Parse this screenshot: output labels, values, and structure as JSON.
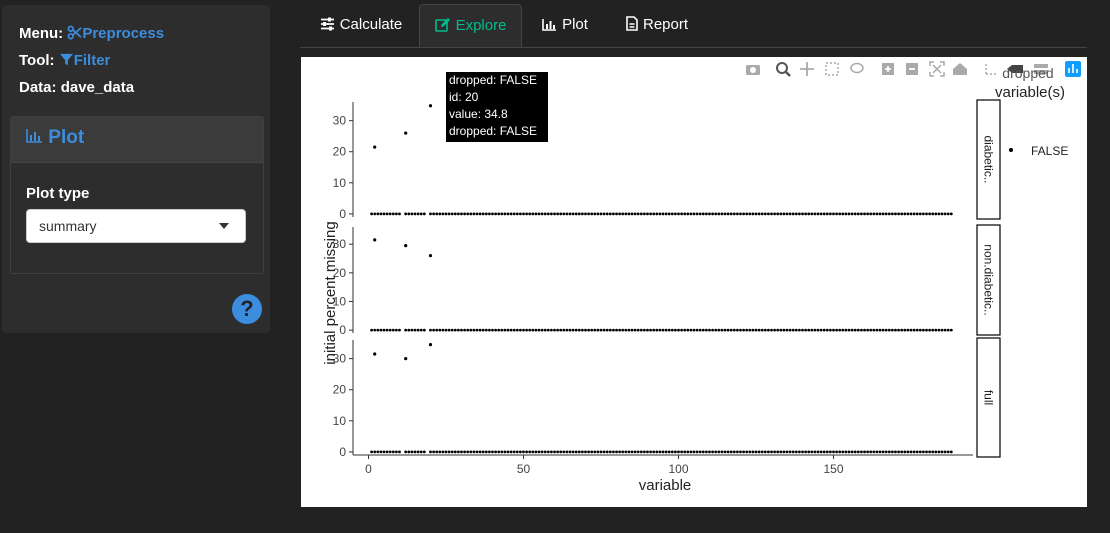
{
  "sidebar": {
    "menu_label": "Menu:",
    "menu_value": "Preprocess",
    "tool_label": "Tool:",
    "tool_value": "Filter",
    "data_label": "Data:",
    "data_value": "dave_data",
    "plot_box_title": "Plot",
    "plot_type_label": "Plot type",
    "plot_type_value": "summary",
    "help_symbol": "?"
  },
  "tabs": [
    {
      "label": "Calculate",
      "icon": "sliders-icon"
    },
    {
      "label": "Explore",
      "icon": "edit-icon",
      "active": true
    },
    {
      "label": "Plot",
      "icon": "bar-chart-icon"
    },
    {
      "label": "Report",
      "icon": "file-icon"
    }
  ],
  "colors": {
    "background": "#222222",
    "panel": "#2d2d2d",
    "accent_blue": "#3c8dde",
    "accent_green": "#00bc8c"
  },
  "tooltip": {
    "line1": "dropped: FALSE",
    "line2": "id:  20",
    "line3": "value: 34.8",
    "line4": "dropped: FALSE"
  },
  "chart_data": {
    "type": "scatter",
    "xlabel": "variable",
    "ylabel": "initial percent missing",
    "xlim": [
      -5,
      195
    ],
    "x_ticks": [
      0,
      50,
      100,
      150
    ],
    "y_ticks": [
      0,
      10,
      20,
      30
    ],
    "legend_title": "dropped\nvariable(s)",
    "legend_title_line1": "dropped",
    "legend_title_line2": "variable(s)",
    "legend_entries": [
      "FALSE"
    ],
    "legend_position": "right",
    "facets": [
      {
        "label": "diabetic..",
        "ylim": [
          -1,
          36
        ],
        "points": [
          [
            2,
            21.5
          ],
          [
            12,
            26
          ],
          [
            20,
            34.8
          ]
        ],
        "zero_x_start": 1,
        "zero_x_end": 188
      },
      {
        "label": "non.diabetic..",
        "ylim": [
          -1,
          36
        ],
        "points": [
          [
            2,
            31.5
          ],
          [
            12,
            29.5
          ],
          [
            20,
            26
          ]
        ],
        "zero_x_start": 1,
        "zero_x_end": 188
      },
      {
        "label": "full",
        "ylim": [
          -1,
          36
        ],
        "points": [
          [
            2,
            31.5
          ],
          [
            12,
            30
          ],
          [
            20,
            34.5
          ]
        ],
        "zero_x_start": 1,
        "zero_x_end": 188
      }
    ],
    "modebar": [
      "camera-icon",
      "zoom-icon",
      "pan-icon",
      "box-select-icon",
      "lasso-icon",
      "zoom-in-icon",
      "zoom-out-icon",
      "autoscale-icon",
      "reset-icon",
      "spike-icon",
      "hover-closest-icon",
      "hover-compare-icon",
      "plotly-logo-icon"
    ]
  }
}
